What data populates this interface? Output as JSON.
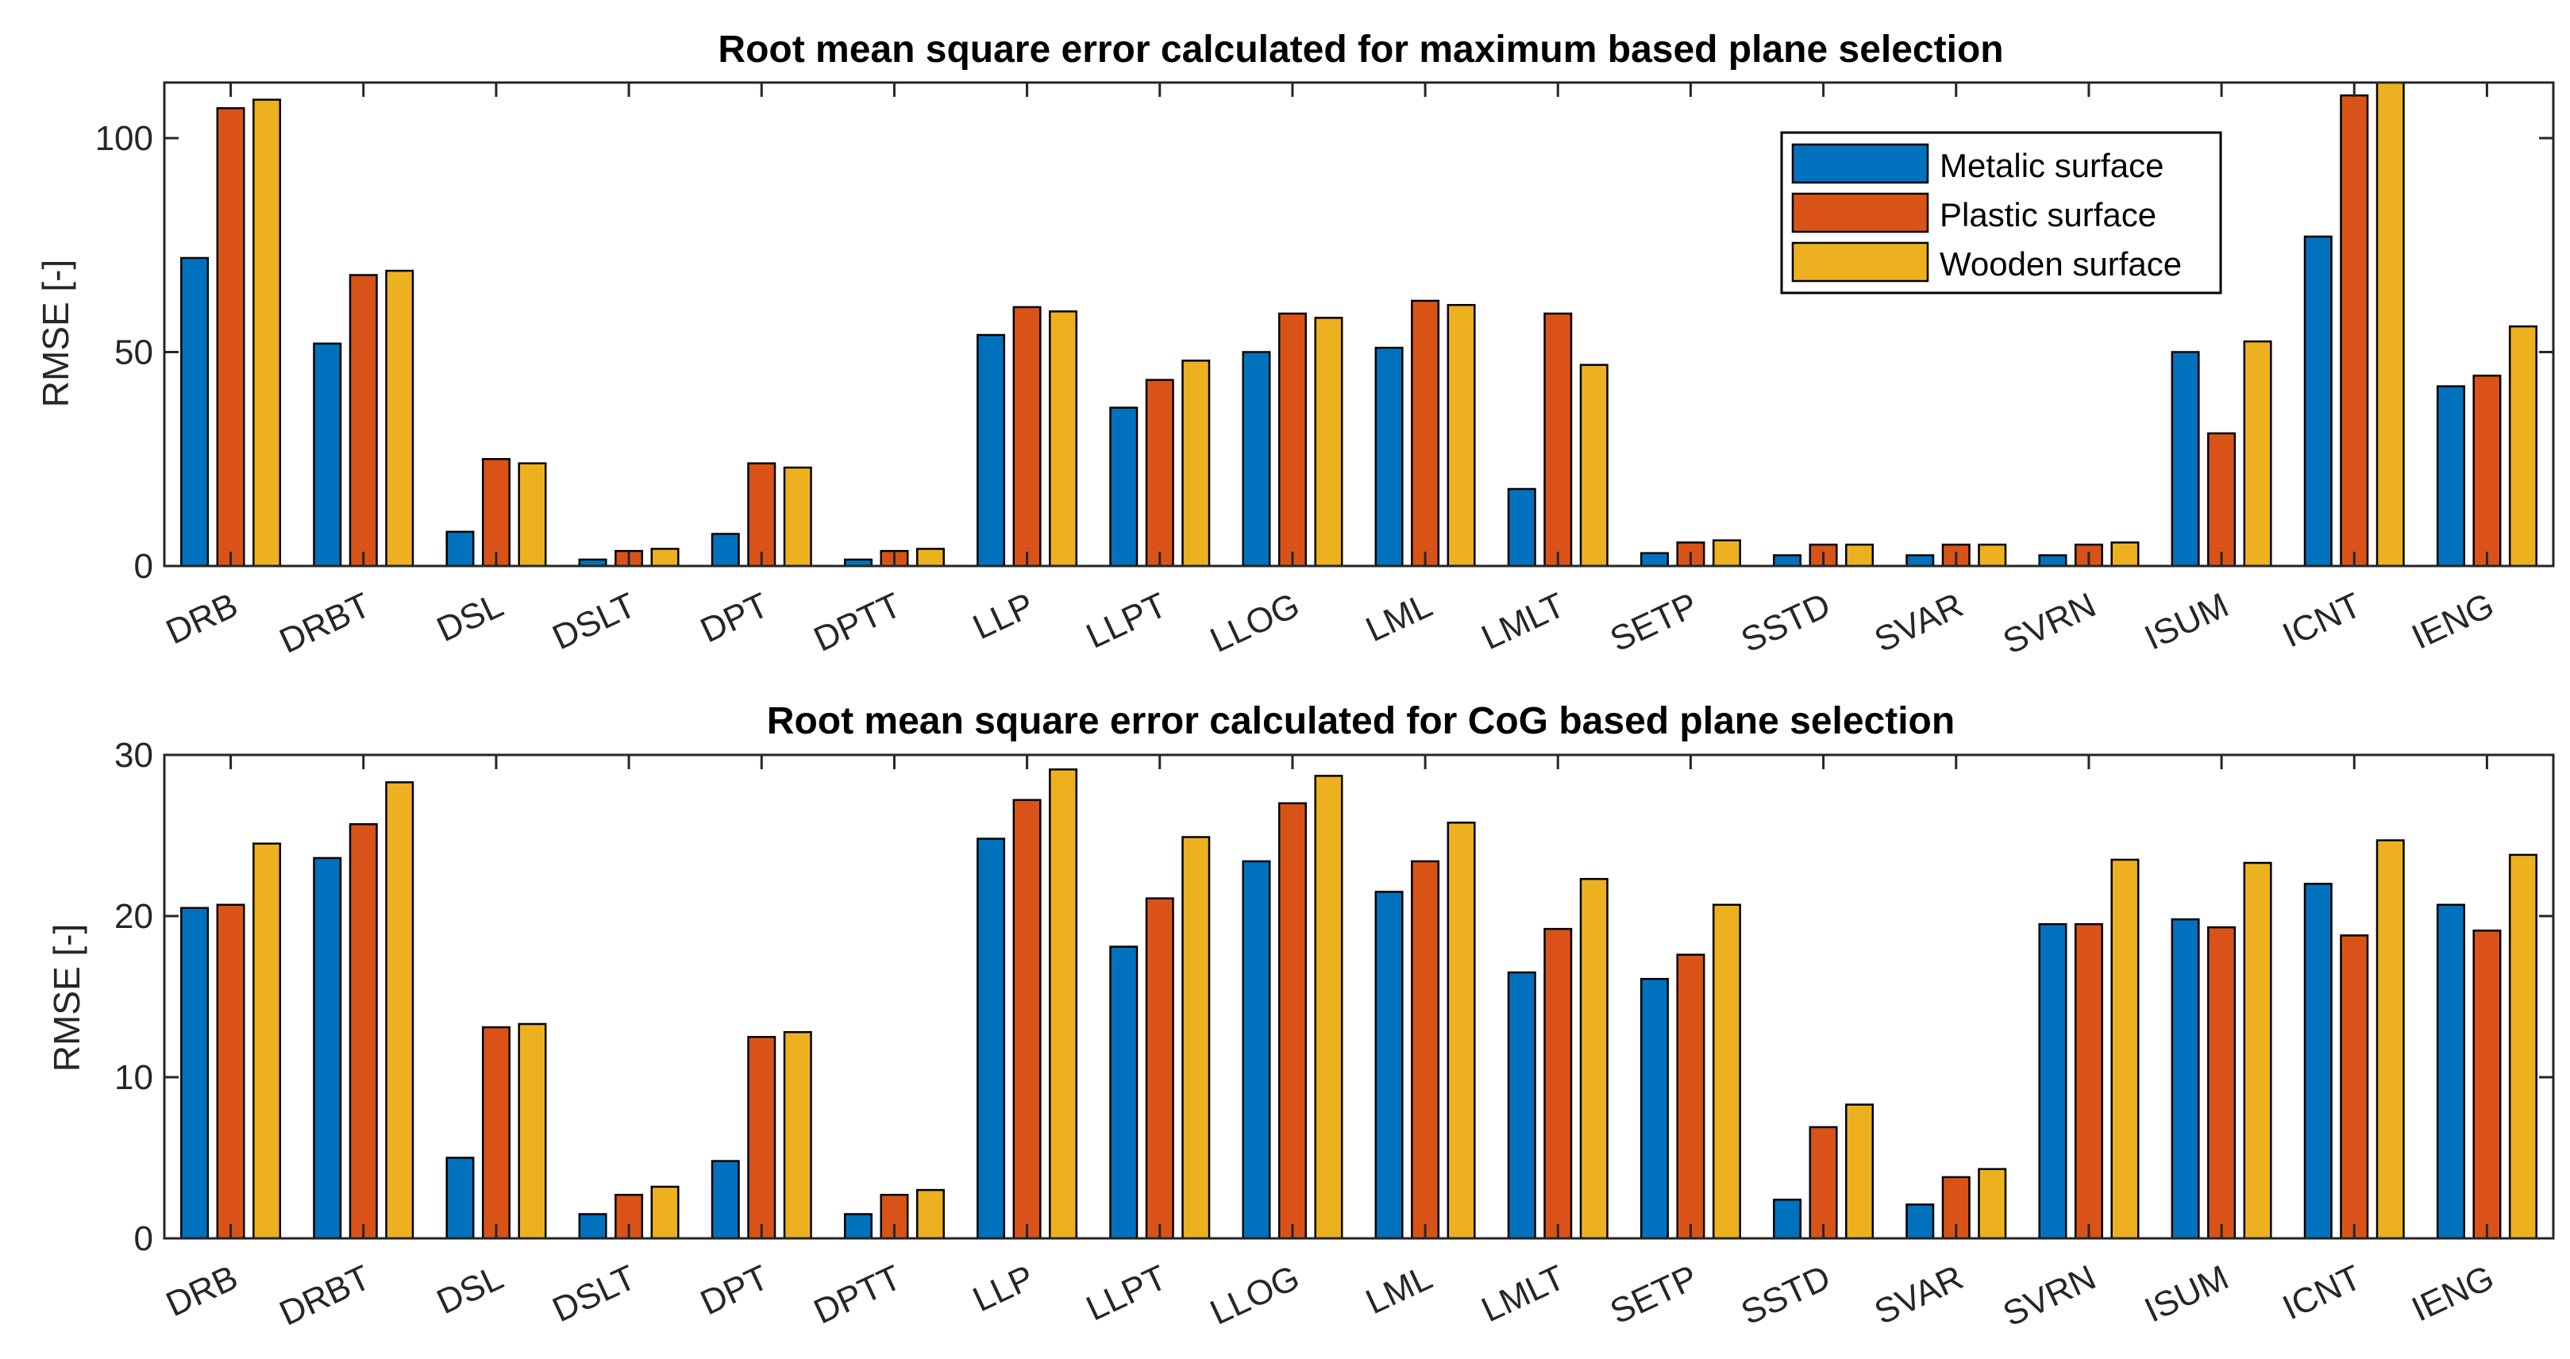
{
  "chart_data": [
    {
      "type": "bar",
      "title": "Root mean square error calculated for maximum based plane selection",
      "xlabel": "",
      "ylabel": "RMSE [-]",
      "ylim": [
        0,
        113
      ],
      "yticks": [
        0,
        50,
        100
      ],
      "categories": [
        "DRB",
        "DRBT",
        "DSL",
        "DSLT",
        "DPT",
        "DPTT",
        "LLP",
        "LLPT",
        "LLOG",
        "LML",
        "LMLT",
        "SETP",
        "SSTD",
        "SVAR",
        "SVRN",
        "ISUM",
        "ICNT",
        "IENG"
      ],
      "series": [
        {
          "name": "Metalic surface",
          "color": "#0072BD",
          "values": [
            72,
            52,
            8,
            1.5,
            7.5,
            1.5,
            54,
            37,
            50,
            51,
            18,
            3,
            2.5,
            2.5,
            2.5,
            50,
            77,
            42
          ]
        },
        {
          "name": "Plastic surface",
          "color": "#D95319",
          "values": [
            107,
            68,
            25,
            3.5,
            24,
            3.5,
            60.5,
            43.5,
            59,
            62,
            59,
            5.5,
            5,
            5,
            5,
            31,
            110,
            44.5
          ]
        },
        {
          "name": "Wooden surface",
          "color": "#EDB120",
          "values": [
            109,
            69,
            24,
            4,
            23,
            4,
            59.5,
            48,
            58,
            61,
            47,
            6,
            5,
            5,
            5.5,
            52.5,
            114,
            56
          ]
        }
      ],
      "legend": "top-right",
      "grid": false
    },
    {
      "type": "bar",
      "title": "Root mean square error calculated for CoG based plane selection",
      "xlabel": "",
      "ylabel": "RMSE [-]",
      "ylim": [
        0,
        30
      ],
      "yticks": [
        0,
        10,
        20,
        30
      ],
      "categories": [
        "DRB",
        "DRBT",
        "DSL",
        "DSLT",
        "DPT",
        "DPTT",
        "LLP",
        "LLPT",
        "LLOG",
        "LML",
        "LMLT",
        "SETP",
        "SSTD",
        "SVAR",
        "SVRN",
        "ISUM",
        "ICNT",
        "IENG"
      ],
      "series": [
        {
          "name": "Metalic surface",
          "color": "#0072BD",
          "values": [
            20.5,
            23.6,
            5,
            1.5,
            4.8,
            1.5,
            24.8,
            18.1,
            23.4,
            21.5,
            16.5,
            16.1,
            2.4,
            2.1,
            19.5,
            19.8,
            22,
            20.7
          ]
        },
        {
          "name": "Plastic surface",
          "color": "#D95319",
          "values": [
            20.7,
            25.7,
            13.1,
            2.7,
            12.5,
            2.7,
            27.2,
            21.1,
            27,
            23.4,
            19.2,
            17.6,
            6.9,
            3.8,
            19.5,
            19.3,
            18.8,
            19.1
          ]
        },
        {
          "name": "Wooden surface",
          "color": "#EDB120",
          "values": [
            24.5,
            28.3,
            13.3,
            3.2,
            12.8,
            3,
            29.1,
            24.9,
            28.7,
            25.8,
            22.3,
            20.7,
            8.3,
            4.3,
            23.5,
            23.3,
            24.7,
            23.8
          ]
        }
      ],
      "grid": false
    }
  ]
}
